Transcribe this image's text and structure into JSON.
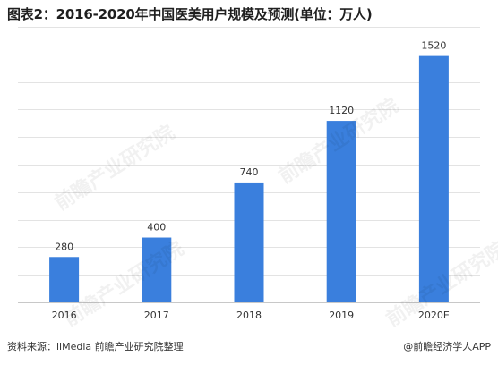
{
  "title": "图表2：2016-2020年中国医美用户规模及预测(单位：万人)",
  "chart_data": {
    "type": "bar",
    "categories": [
      "2016",
      "2017",
      "2018",
      "2019",
      "2020E"
    ],
    "values": [
      280,
      400,
      740,
      1120,
      1520
    ],
    "ylim": [
      0,
      1700
    ],
    "y_gridlines": [
      0,
      170,
      340,
      510,
      680,
      850,
      1020,
      1190,
      1360,
      1530,
      1700
    ],
    "grid": true,
    "bar_color": "#3a7fdd",
    "data_labels": [
      "280",
      "400",
      "740",
      "1120",
      "1520"
    ]
  },
  "footer": {
    "source": "资料来源：iiMedia 前瞻产业研究院整理",
    "app": "@前瞻经济学人APP"
  },
  "watermark": "前瞻产业研究院"
}
